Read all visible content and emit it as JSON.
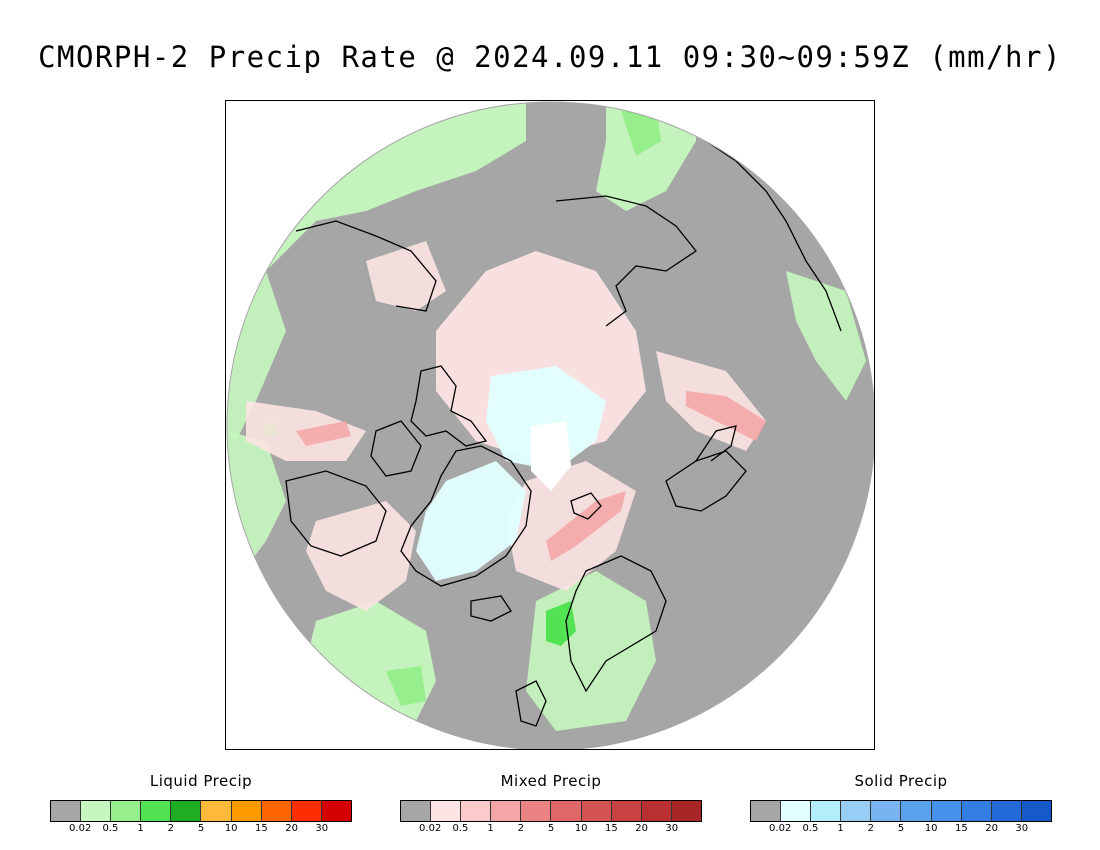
{
  "title": "CMORPH-2 Precip Rate @ 2024.09.11 09:30~09:59Z (mm/hr)",
  "legends": [
    {
      "title": "Liquid Precip",
      "colors": [
        "#a6a6a6",
        "#c5f7be",
        "#96ee8c",
        "#52e353",
        "#1fad23",
        "#fdb93c",
        "#fd9a00",
        "#fd6600",
        "#fd2f00",
        "#d40000"
      ],
      "ticks": [
        "0.02",
        "0.5",
        "1",
        "2",
        "5",
        "10",
        "15",
        "20",
        "30"
      ]
    },
    {
      "title": "Mixed Precip",
      "colors": [
        "#a6a6a6",
        "#fde3e3",
        "#fbcaca",
        "#f4a6a6",
        "#ec8383",
        "#e06767",
        "#d45454",
        "#c84242",
        "#b83030",
        "#a82626"
      ],
      "ticks": [
        "0.02",
        "0.5",
        "1",
        "2",
        "5",
        "10",
        "15",
        "20",
        "30"
      ]
    },
    {
      "title": "Solid Precip",
      "colors": [
        "#a6a6a6",
        "#e2ffff",
        "#b4eefa",
        "#98cdf6",
        "#78b4f2",
        "#5aa2ee",
        "#4692ea",
        "#347de2",
        "#2369d8",
        "#1659c8"
      ],
      "ticks": [
        "0.02",
        "0.5",
        "1",
        "2",
        "5",
        "10",
        "15",
        "20",
        "30"
      ]
    }
  ],
  "map_colors": {
    "no_precip": "#a6a6a6",
    "light_rain": "#c5f7be",
    "moderate_rain": "#96ee8c",
    "heavy_rain": "#52e353",
    "light_mixed": "#fde3e3",
    "moderate_mixed": "#f4a6a6",
    "light_snow": "#e2ffff",
    "snow_core": "#ffffff",
    "coastline": "#000000"
  }
}
